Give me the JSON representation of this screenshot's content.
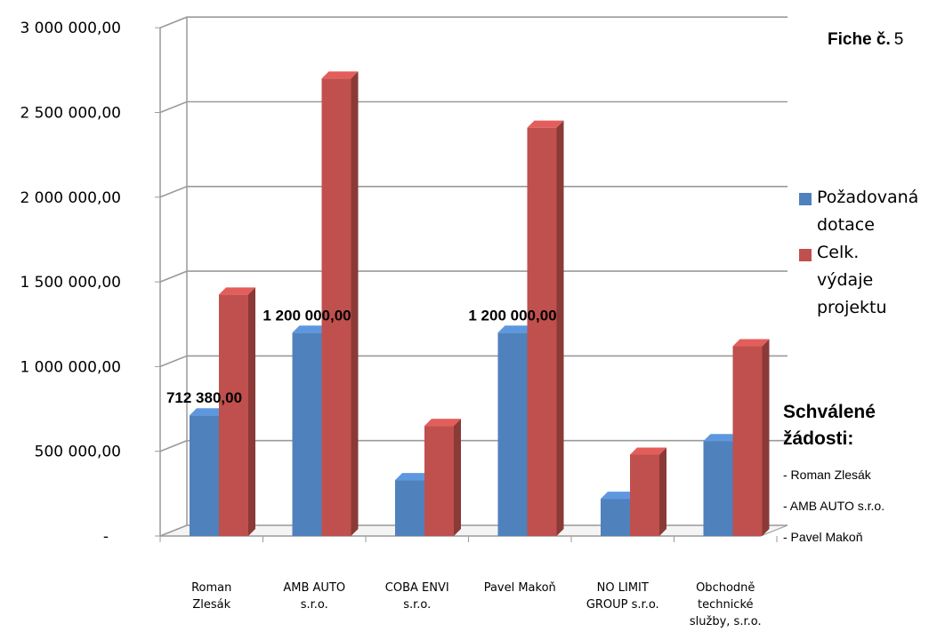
{
  "chart_data": {
    "type": "bar",
    "categories": [
      [
        "Roman",
        "Zlesák"
      ],
      [
        "AMB AUTO",
        "s.r.o."
      ],
      [
        "COBA ENVI",
        "s.r.o."
      ],
      [
        "Pavel Makoň"
      ],
      [
        "NO LIMIT",
        "GROUP s.r.o."
      ],
      [
        "Obchodně",
        "technické",
        "služby, s.r.o."
      ]
    ],
    "series": [
      {
        "name": "Požadovaná dotace",
        "color": "#4f81bd",
        "values": [
          712380,
          1200000,
          330000,
          1200000,
          220000,
          560000
        ],
        "labels": [
          "712 380,00",
          "1 200 000,00",
          "",
          "1 200 000,00",
          "",
          ""
        ]
      },
      {
        "name": "Celk. výdaje projektu",
        "color": "#c0504d",
        "values": [
          1425000,
          2700000,
          650000,
          2410000,
          480000,
          1120000
        ],
        "labels": [
          "",
          "",
          "",
          "",
          "",
          ""
        ]
      }
    ],
    "y_ticks": [
      {
        "value": 0,
        "label": "-"
      },
      {
        "value": 500000,
        "label": "500 000,00"
      },
      {
        "value": 1000000,
        "label": "1 000 000,00"
      },
      {
        "value": 1500000,
        "label": "1 500 000,00"
      },
      {
        "value": 2000000,
        "label": "2 000 000,00"
      },
      {
        "value": 2500000,
        "label": "2 500 000,00"
      },
      {
        "value": 3000000,
        "label": "3 000 000,00"
      }
    ],
    "ylim": [
      0,
      3000000
    ],
    "grid": true,
    "legend_position": "right",
    "legend_lines": [
      [
        "Požadovaná",
        "dotace"
      ],
      [
        "Celk.",
        "výdaje",
        "projektu"
      ]
    ]
  },
  "fiche": {
    "label": "Fiche č.",
    "number": "5"
  },
  "approved": {
    "title_line1": "Schválené",
    "title_line2": "žádosti:",
    "items": [
      "- Roman Zlesák",
      "- AMB AUTO s.r.o.",
      "- Pavel Makoň"
    ]
  }
}
